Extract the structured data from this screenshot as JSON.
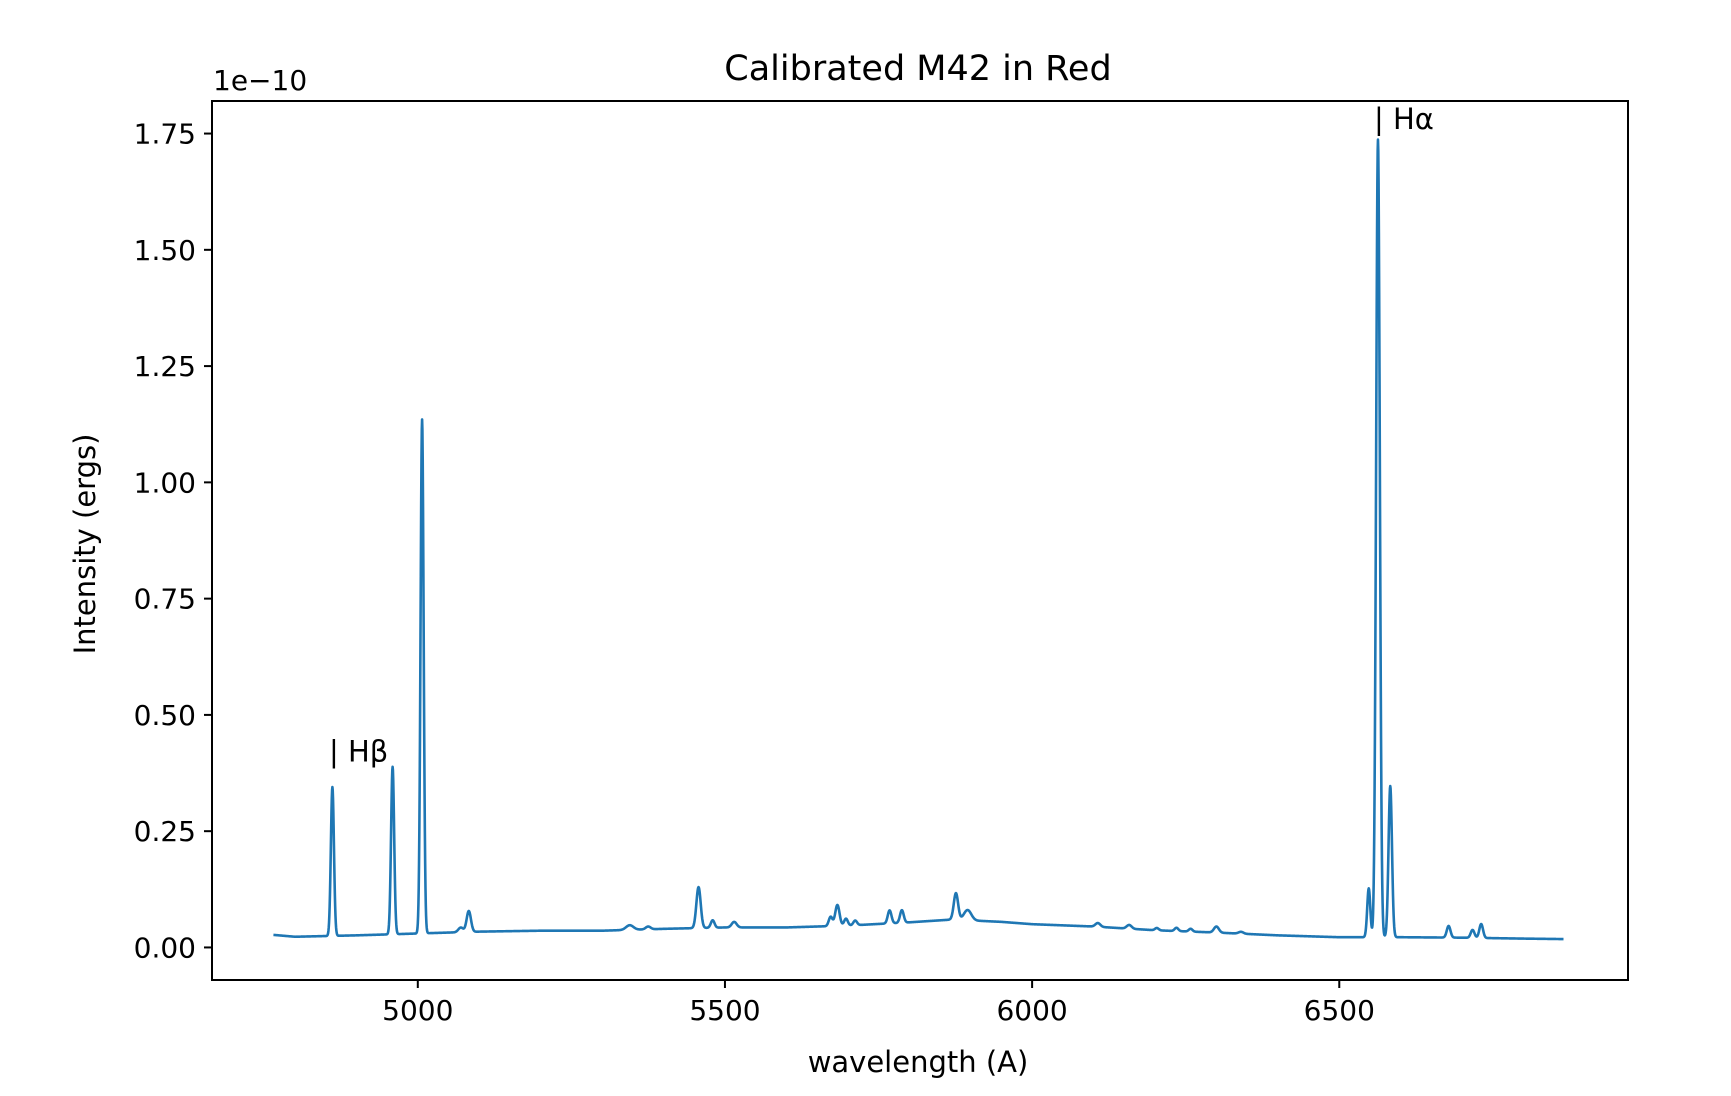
{
  "chart_data": {
    "type": "line",
    "title": "Calibrated M42 in Red",
    "xlabel": "wavelength (A)",
    "ylabel": "Intensity (ergs)",
    "y_offset_text": "1e−10",
    "xlim": [
      4665,
      6970
    ],
    "ylim": [
      -0.07,
      1.82
    ],
    "x_ticks": [
      5000,
      5500,
      6000,
      6500
    ],
    "y_ticks": [
      0.0,
      0.25,
      0.5,
      0.75,
      1.0,
      1.25,
      1.5,
      1.75
    ],
    "x_tick_labels": [
      "5000",
      "5500",
      "6000",
      "6500"
    ],
    "y_tick_labels": [
      "0.00",
      "0.25",
      "0.50",
      "0.75",
      "1.00",
      "1.25",
      "1.50",
      "1.75"
    ],
    "grid": false,
    "series": [
      {
        "color": "#1f77b4",
        "continuum": [
          [
            4765,
            0.027
          ],
          [
            4800,
            0.023
          ],
          [
            4900,
            0.026
          ],
          [
            5000,
            0.03
          ],
          [
            5100,
            0.034
          ],
          [
            5200,
            0.036
          ],
          [
            5300,
            0.036
          ],
          [
            5400,
            0.04
          ],
          [
            5500,
            0.043
          ],
          [
            5600,
            0.043
          ],
          [
            5700,
            0.047
          ],
          [
            5800,
            0.054
          ],
          [
            5870,
            0.06
          ],
          [
            5950,
            0.055
          ],
          [
            6000,
            0.05
          ],
          [
            6100,
            0.045
          ],
          [
            6200,
            0.037
          ],
          [
            6300,
            0.032
          ],
          [
            6400,
            0.026
          ],
          [
            6500,
            0.022
          ],
          [
            6600,
            0.022
          ],
          [
            6700,
            0.021
          ],
          [
            6800,
            0.019
          ],
          [
            6865,
            0.018
          ]
        ],
        "peaks": [
          {
            "x": 4861,
            "height": 0.32,
            "width": 2.5
          },
          {
            "x": 4959,
            "height": 0.36,
            "width": 2.5
          },
          {
            "x": 5007,
            "height": 1.105,
            "width": 2.5
          },
          {
            "x": 5070,
            "height": 0.01,
            "width": 4
          },
          {
            "x": 5083,
            "height": 0.045,
            "width": 3.5
          },
          {
            "x": 5345,
            "height": 0.01,
            "width": 6
          },
          {
            "x": 5375,
            "height": 0.006,
            "width": 4
          },
          {
            "x": 5457,
            "height": 0.088,
            "width": 3.5
          },
          {
            "x": 5480,
            "height": 0.016,
            "width": 3
          },
          {
            "x": 5515,
            "height": 0.012,
            "width": 4
          },
          {
            "x": 5672,
            "height": 0.02,
            "width": 3
          },
          {
            "x": 5683,
            "height": 0.045,
            "width": 3.5
          },
          {
            "x": 5697,
            "height": 0.015,
            "width": 3
          },
          {
            "x": 5712,
            "height": 0.01,
            "width": 3
          },
          {
            "x": 5768,
            "height": 0.028,
            "width": 3
          },
          {
            "x": 5788,
            "height": 0.027,
            "width": 3
          },
          {
            "x": 5876,
            "height": 0.057,
            "width": 3.5
          },
          {
            "x": 5895,
            "height": 0.022,
            "width": 6
          },
          {
            "x": 6107,
            "height": 0.008,
            "width": 4
          },
          {
            "x": 6158,
            "height": 0.008,
            "width": 4
          },
          {
            "x": 6203,
            "height": 0.005,
            "width": 3
          },
          {
            "x": 6235,
            "height": 0.007,
            "width": 3
          },
          {
            "x": 6258,
            "height": 0.006,
            "width": 3
          },
          {
            "x": 6300,
            "height": 0.013,
            "width": 4
          },
          {
            "x": 6340,
            "height": 0.004,
            "width": 4
          },
          {
            "x": 6548,
            "height": 0.105,
            "width": 2.5
          },
          {
            "x": 6563,
            "height": 1.715,
            "width": 3
          },
          {
            "x": 6583,
            "height": 0.325,
            "width": 2.8
          },
          {
            "x": 6678,
            "height": 0.025,
            "width": 3
          },
          {
            "x": 6717,
            "height": 0.017,
            "width": 3
          },
          {
            "x": 6731,
            "height": 0.03,
            "width": 3
          }
        ]
      }
    ],
    "annotations": [
      {
        "x": 4862,
        "y": 0.4,
        "text": "| Hβ"
      },
      {
        "x": 6563,
        "y": 1.76,
        "text": "| Hα"
      }
    ]
  }
}
